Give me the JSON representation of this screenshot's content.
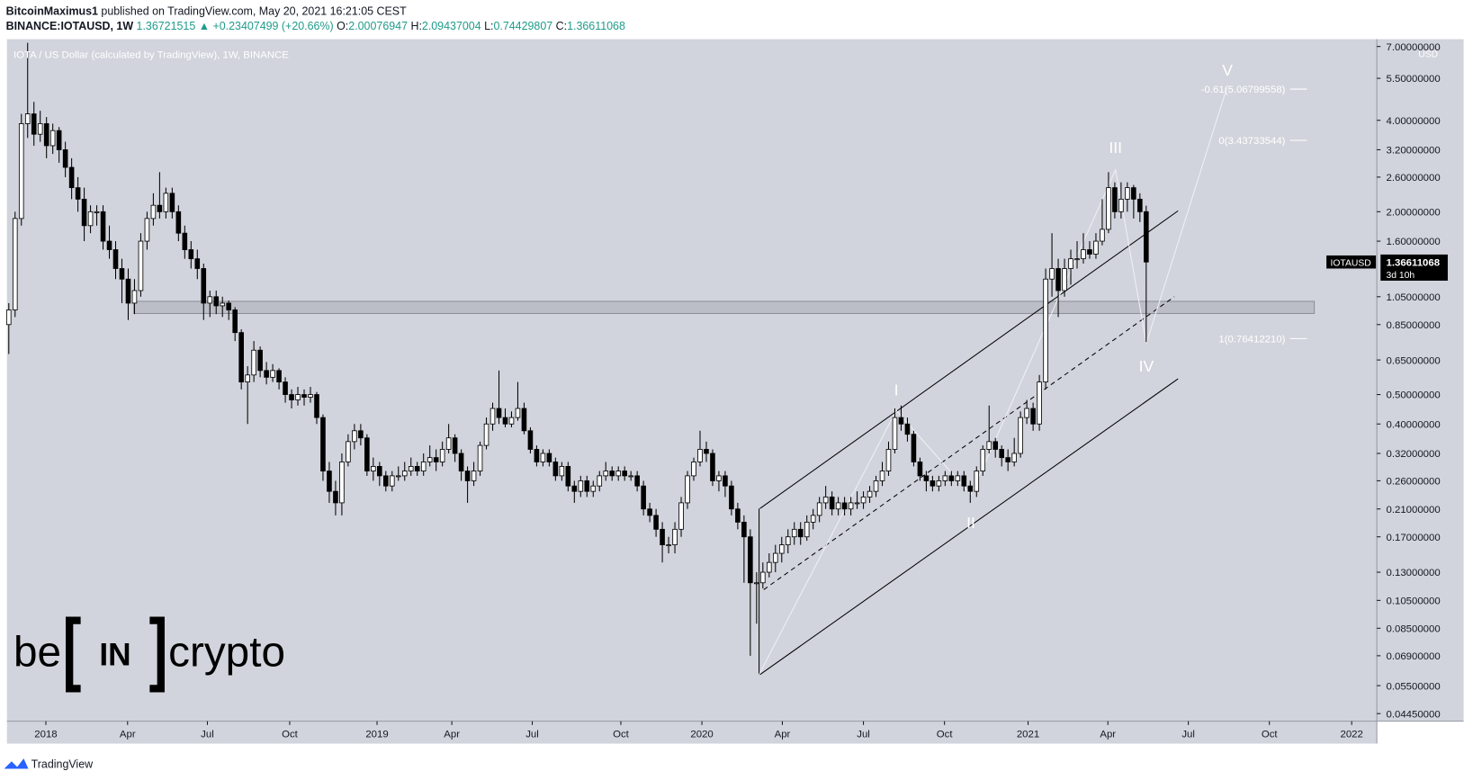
{
  "header": {
    "author": "BitcoinMaximus1",
    "published": "published on TradingView.com, May 20, 2021 16:21:05 CEST",
    "symbol": "BINANCE:IOTAUSD, 1W",
    "price": "1.36721515",
    "change": "▲ +0.23407499 (+20.66%)",
    "open_label": "O:",
    "high_label": "H:",
    "low_label": "L:",
    "close_label": "C:"
  },
  "chart_data": {
    "type": "candlestick",
    "title": "IOTA / US Dollar (calculated by TradingView), 1W, BINANCE",
    "currency": "USD",
    "symbol": "IOTAUSD",
    "countdown": "3d 10h",
    "log_scale": true,
    "up_color": "#ffffff",
    "down_color": "#000000",
    "ylim": [
      0.042,
      7.4
    ],
    "yticks": [
      {
        "value": 7,
        "label": "7.00000000"
      },
      {
        "value": 5.5,
        "label": "5.50000000"
      },
      {
        "value": 4,
        "label": "4.00000000"
      },
      {
        "value": 3.2,
        "label": "3.20000000"
      },
      {
        "value": 2.6,
        "label": "2.60000000"
      },
      {
        "value": 2,
        "label": "2.00000000"
      },
      {
        "value": 1.6,
        "label": "1.60000000"
      },
      {
        "value": 1.05,
        "label": "1.05000000"
      },
      {
        "value": 0.85,
        "label": "0.85000000"
      },
      {
        "value": 0.65,
        "label": "0.65000000"
      },
      {
        "value": 0.5,
        "label": "0.50000000"
      },
      {
        "value": 0.4,
        "label": "0.40000000"
      },
      {
        "value": 0.32,
        "label": "0.32000000"
      },
      {
        "value": 0.26,
        "label": "0.26000000"
      },
      {
        "value": 0.21,
        "label": "0.21000000"
      },
      {
        "value": 0.17,
        "label": "0.17000000"
      },
      {
        "value": 0.13,
        "label": "0.13000000"
      },
      {
        "value": 0.105,
        "label": "0.10500000"
      },
      {
        "value": 0.085,
        "label": "0.08500000"
      },
      {
        "value": 0.069,
        "label": "0.06900000"
      },
      {
        "value": 0.055,
        "label": "0.05500000"
      },
      {
        "value": 0.0445,
        "label": "0.04450000"
      }
    ],
    "xlim": [
      -0.3,
      217.7
    ],
    "xticks": [
      {
        "value": 5.9,
        "label": "2018"
      },
      {
        "value": 18.9,
        "label": "Apr"
      },
      {
        "value": 31.6,
        "label": "Jul"
      },
      {
        "value": 44.7,
        "label": "Oct"
      },
      {
        "value": 58.6,
        "label": "2019"
      },
      {
        "value": 70.5,
        "label": "Apr"
      },
      {
        "value": 83.3,
        "label": "Jul"
      },
      {
        "value": 97.4,
        "label": "Oct"
      },
      {
        "value": 110.3,
        "label": "2020"
      },
      {
        "value": 123.1,
        "label": "Apr"
      },
      {
        "value": 136,
        "label": "Jul"
      },
      {
        "value": 148.9,
        "label": "Oct"
      },
      {
        "value": 162.2,
        "label": "2021"
      },
      {
        "value": 174.9,
        "label": "Apr"
      },
      {
        "value": 187.7,
        "label": "Jul"
      },
      {
        "value": 200.6,
        "label": "Oct"
      },
      {
        "value": 213.7,
        "label": "2022"
      }
    ],
    "fib_levels": [
      {
        "value": 5.06799558,
        "label": "-0.61(5.06799558)"
      },
      {
        "value": 3.43733544,
        "label": "0(3.43733544)"
      },
      {
        "value": 0.7641221,
        "label": "1(0.76412210)"
      }
    ],
    "waves": [
      "I",
      "II",
      "III",
      "IV",
      "V"
    ],
    "ohlc": [
      [
        0.85,
        1.0,
        0.68,
        0.95
      ],
      [
        0.95,
        2.0,
        0.9,
        1.9
      ],
      [
        1.9,
        4.2,
        1.8,
        3.9
      ],
      [
        3.9,
        7.2,
        3.5,
        4.2
      ],
      [
        4.2,
        4.6,
        3.3,
        3.6
      ],
      [
        3.6,
        4.3,
        3.4,
        3.9
      ],
      [
        3.9,
        4.1,
        3.0,
        3.3
      ],
      [
        3.3,
        3.9,
        3.1,
        3.7
      ],
      [
        3.7,
        3.8,
        2.9,
        3.2
      ],
      [
        3.2,
        3.4,
        2.6,
        2.8
      ],
      [
        2.8,
        3.0,
        2.2,
        2.4
      ],
      [
        2.4,
        2.6,
        2.0,
        2.2
      ],
      [
        2.2,
        2.4,
        1.6,
        1.8
      ],
      [
        1.8,
        2.1,
        1.7,
        2.0
      ],
      [
        2.0,
        2.1,
        1.8,
        2.0
      ],
      [
        2.0,
        2.1,
        1.5,
        1.6
      ],
      [
        1.6,
        1.8,
        1.4,
        1.5
      ],
      [
        1.5,
        1.6,
        1.2,
        1.3
      ],
      [
        1.3,
        1.4,
        1.0,
        1.2
      ],
      [
        1.2,
        1.3,
        0.88,
        1.0
      ],
      [
        1.0,
        1.2,
        0.92,
        1.1
      ],
      [
        1.1,
        1.7,
        1.05,
        1.6
      ],
      [
        1.6,
        2.0,
        1.5,
        1.9
      ],
      [
        1.9,
        2.3,
        1.8,
        2.1
      ],
      [
        2.1,
        2.7,
        1.9,
        2.0
      ],
      [
        2.0,
        2.4,
        1.9,
        2.3
      ],
      [
        2.3,
        2.4,
        1.9,
        2.0
      ],
      [
        2.0,
        2.1,
        1.6,
        1.7
      ],
      [
        1.7,
        1.8,
        1.4,
        1.5
      ],
      [
        1.5,
        1.6,
        1.3,
        1.4
      ],
      [
        1.4,
        1.5,
        1.2,
        1.3
      ],
      [
        1.3,
        1.35,
        0.88,
        1.0
      ],
      [
        1.0,
        1.1,
        0.9,
        1.05
      ],
      [
        1.05,
        1.1,
        0.92,
        0.98
      ],
      [
        0.98,
        1.05,
        0.9,
        1.0
      ],
      [
        1.0,
        1.02,
        0.88,
        0.95
      ],
      [
        0.95,
        0.97,
        0.75,
        0.8
      ],
      [
        0.8,
        0.82,
        0.52,
        0.55
      ],
      [
        0.55,
        0.62,
        0.4,
        0.58
      ],
      [
        0.58,
        0.75,
        0.55,
        0.7
      ],
      [
        0.7,
        0.72,
        0.57,
        0.6
      ],
      [
        0.6,
        0.64,
        0.54,
        0.57
      ],
      [
        0.57,
        0.63,
        0.55,
        0.6
      ],
      [
        0.6,
        0.61,
        0.52,
        0.55
      ],
      [
        0.55,
        0.57,
        0.47,
        0.5
      ],
      [
        0.5,
        0.52,
        0.45,
        0.48
      ],
      [
        0.48,
        0.53,
        0.46,
        0.5
      ],
      [
        0.5,
        0.52,
        0.46,
        0.49
      ],
      [
        0.49,
        0.53,
        0.47,
        0.5
      ],
      [
        0.5,
        0.51,
        0.4,
        0.42
      ],
      [
        0.42,
        0.43,
        0.26,
        0.28
      ],
      [
        0.28,
        0.3,
        0.22,
        0.24
      ],
      [
        0.24,
        0.26,
        0.2,
        0.22
      ],
      [
        0.22,
        0.32,
        0.2,
        0.3
      ],
      [
        0.3,
        0.37,
        0.29,
        0.35
      ],
      [
        0.35,
        0.4,
        0.33,
        0.38
      ],
      [
        0.38,
        0.4,
        0.34,
        0.36
      ],
      [
        0.36,
        0.37,
        0.27,
        0.28
      ],
      [
        0.28,
        0.31,
        0.26,
        0.29
      ],
      [
        0.29,
        0.3,
        0.25,
        0.27
      ],
      [
        0.27,
        0.28,
        0.24,
        0.25
      ],
      [
        0.25,
        0.28,
        0.24,
        0.27
      ],
      [
        0.27,
        0.29,
        0.26,
        0.27
      ],
      [
        0.27,
        0.3,
        0.26,
        0.28
      ],
      [
        0.28,
        0.31,
        0.27,
        0.29
      ],
      [
        0.29,
        0.3,
        0.27,
        0.28
      ],
      [
        0.28,
        0.32,
        0.27,
        0.3
      ],
      [
        0.3,
        0.34,
        0.29,
        0.31
      ],
      [
        0.31,
        0.33,
        0.28,
        0.3
      ],
      [
        0.3,
        0.35,
        0.29,
        0.33
      ],
      [
        0.33,
        0.4,
        0.32,
        0.36
      ],
      [
        0.36,
        0.37,
        0.3,
        0.32
      ],
      [
        0.32,
        0.33,
        0.26,
        0.28
      ],
      [
        0.28,
        0.29,
        0.22,
        0.26
      ],
      [
        0.26,
        0.3,
        0.25,
        0.28
      ],
      [
        0.28,
        0.35,
        0.27,
        0.34
      ],
      [
        0.34,
        0.42,
        0.33,
        0.4
      ],
      [
        0.4,
        0.47,
        0.38,
        0.45
      ],
      [
        0.45,
        0.6,
        0.4,
        0.42
      ],
      [
        0.42,
        0.45,
        0.39,
        0.4
      ],
      [
        0.4,
        0.44,
        0.39,
        0.42
      ],
      [
        0.42,
        0.55,
        0.41,
        0.45
      ],
      [
        0.45,
        0.47,
        0.37,
        0.38
      ],
      [
        0.38,
        0.39,
        0.32,
        0.33
      ],
      [
        0.33,
        0.34,
        0.29,
        0.3
      ],
      [
        0.3,
        0.33,
        0.29,
        0.32
      ],
      [
        0.32,
        0.33,
        0.29,
        0.3
      ],
      [
        0.3,
        0.31,
        0.26,
        0.27
      ],
      [
        0.27,
        0.3,
        0.26,
        0.29
      ],
      [
        0.29,
        0.3,
        0.24,
        0.25
      ],
      [
        0.25,
        0.26,
        0.22,
        0.24
      ],
      [
        0.24,
        0.27,
        0.23,
        0.26
      ],
      [
        0.26,
        0.27,
        0.23,
        0.24
      ],
      [
        0.24,
        0.26,
        0.23,
        0.25
      ],
      [
        0.25,
        0.28,
        0.24,
        0.27
      ],
      [
        0.27,
        0.3,
        0.26,
        0.28
      ],
      [
        0.28,
        0.29,
        0.26,
        0.27
      ],
      [
        0.27,
        0.29,
        0.26,
        0.28
      ],
      [
        0.28,
        0.29,
        0.26,
        0.27
      ],
      [
        0.27,
        0.28,
        0.26,
        0.27
      ],
      [
        0.27,
        0.28,
        0.24,
        0.25
      ],
      [
        0.25,
        0.26,
        0.2,
        0.21
      ],
      [
        0.21,
        0.22,
        0.19,
        0.2
      ],
      [
        0.2,
        0.21,
        0.17,
        0.18
      ],
      [
        0.18,
        0.19,
        0.14,
        0.16
      ],
      [
        0.16,
        0.17,
        0.15,
        0.16
      ],
      [
        0.16,
        0.19,
        0.15,
        0.18
      ],
      [
        0.18,
        0.23,
        0.17,
        0.22
      ],
      [
        0.22,
        0.28,
        0.21,
        0.27
      ],
      [
        0.27,
        0.31,
        0.26,
        0.3
      ],
      [
        0.3,
        0.38,
        0.29,
        0.33
      ],
      [
        0.33,
        0.35,
        0.3,
        0.32
      ],
      [
        0.32,
        0.33,
        0.25,
        0.26
      ],
      [
        0.26,
        0.28,
        0.24,
        0.27
      ],
      [
        0.27,
        0.28,
        0.23,
        0.25
      ],
      [
        0.25,
        0.26,
        0.2,
        0.21
      ],
      [
        0.21,
        0.22,
        0.18,
        0.19
      ],
      [
        0.19,
        0.2,
        0.12,
        0.17
      ],
      [
        0.17,
        0.18,
        0.069,
        0.12
      ],
      [
        0.12,
        0.13,
        0.088,
        0.12
      ],
      [
        0.12,
        0.14,
        0.115,
        0.13
      ],
      [
        0.13,
        0.15,
        0.125,
        0.14
      ],
      [
        0.14,
        0.16,
        0.13,
        0.15
      ],
      [
        0.15,
        0.17,
        0.14,
        0.16
      ],
      [
        0.16,
        0.18,
        0.15,
        0.17
      ],
      [
        0.17,
        0.19,
        0.16,
        0.18
      ],
      [
        0.18,
        0.19,
        0.16,
        0.17
      ],
      [
        0.17,
        0.2,
        0.165,
        0.19
      ],
      [
        0.19,
        0.21,
        0.18,
        0.2
      ],
      [
        0.2,
        0.23,
        0.19,
        0.22
      ],
      [
        0.22,
        0.25,
        0.21,
        0.23
      ],
      [
        0.23,
        0.24,
        0.2,
        0.21
      ],
      [
        0.21,
        0.23,
        0.2,
        0.22
      ],
      [
        0.22,
        0.23,
        0.2,
        0.21
      ],
      [
        0.21,
        0.23,
        0.2,
        0.22
      ],
      [
        0.22,
        0.24,
        0.21,
        0.22
      ],
      [
        0.22,
        0.24,
        0.21,
        0.23
      ],
      [
        0.23,
        0.25,
        0.22,
        0.24
      ],
      [
        0.24,
        0.27,
        0.23,
        0.26
      ],
      [
        0.26,
        0.3,
        0.25,
        0.28
      ],
      [
        0.28,
        0.35,
        0.27,
        0.33
      ],
      [
        0.33,
        0.45,
        0.32,
        0.42
      ],
      [
        0.42,
        0.46,
        0.38,
        0.4
      ],
      [
        0.4,
        0.42,
        0.35,
        0.37
      ],
      [
        0.37,
        0.38,
        0.29,
        0.3
      ],
      [
        0.3,
        0.31,
        0.26,
        0.27
      ],
      [
        0.27,
        0.28,
        0.24,
        0.26
      ],
      [
        0.26,
        0.27,
        0.24,
        0.25
      ],
      [
        0.25,
        0.27,
        0.24,
        0.26
      ],
      [
        0.26,
        0.28,
        0.25,
        0.27
      ],
      [
        0.27,
        0.28,
        0.25,
        0.26
      ],
      [
        0.26,
        0.28,
        0.25,
        0.27
      ],
      [
        0.27,
        0.28,
        0.24,
        0.25
      ],
      [
        0.25,
        0.26,
        0.22,
        0.24
      ],
      [
        0.24,
        0.29,
        0.23,
        0.28
      ],
      [
        0.28,
        0.34,
        0.27,
        0.33
      ],
      [
        0.33,
        0.46,
        0.32,
        0.35
      ],
      [
        0.35,
        0.36,
        0.31,
        0.33
      ],
      [
        0.33,
        0.34,
        0.29,
        0.31
      ],
      [
        0.31,
        0.33,
        0.28,
        0.3
      ],
      [
        0.3,
        0.36,
        0.29,
        0.32
      ],
      [
        0.32,
        0.44,
        0.31,
        0.42
      ],
      [
        0.42,
        0.48,
        0.4,
        0.45
      ],
      [
        0.45,
        0.47,
        0.38,
        0.4
      ],
      [
        0.4,
        0.58,
        0.38,
        0.55
      ],
      [
        0.55,
        1.3,
        0.52,
        1.2
      ],
      [
        1.2,
        1.7,
        1.05,
        1.3
      ],
      [
        1.3,
        1.4,
        0.9,
        1.1
      ],
      [
        1.1,
        1.4,
        1.05,
        1.3
      ],
      [
        1.3,
        1.5,
        1.15,
        1.4
      ],
      [
        1.4,
        1.6,
        1.3,
        1.4
      ],
      [
        1.4,
        1.7,
        1.35,
        1.5
      ],
      [
        1.5,
        1.6,
        1.4,
        1.45
      ],
      [
        1.45,
        1.7,
        1.4,
        1.6
      ],
      [
        1.6,
        2.2,
        1.55,
        1.75
      ],
      [
        1.75,
        2.7,
        1.7,
        2.4
      ],
      [
        2.4,
        2.5,
        1.9,
        2.0
      ],
      [
        2.0,
        2.5,
        1.9,
        2.2
      ],
      [
        2.2,
        2.5,
        2.0,
        2.4
      ],
      [
        2.4,
        2.45,
        1.9,
        2.2
      ],
      [
        2.2,
        2.3,
        1.85,
        2.0
      ],
      [
        2.00076947,
        2.09437004,
        0.74429807,
        1.36611068
      ]
    ]
  },
  "watermark": {
    "left": "be",
    "middle": "IN",
    "right": "crypto"
  },
  "footer": {
    "brand": "TradingView"
  }
}
